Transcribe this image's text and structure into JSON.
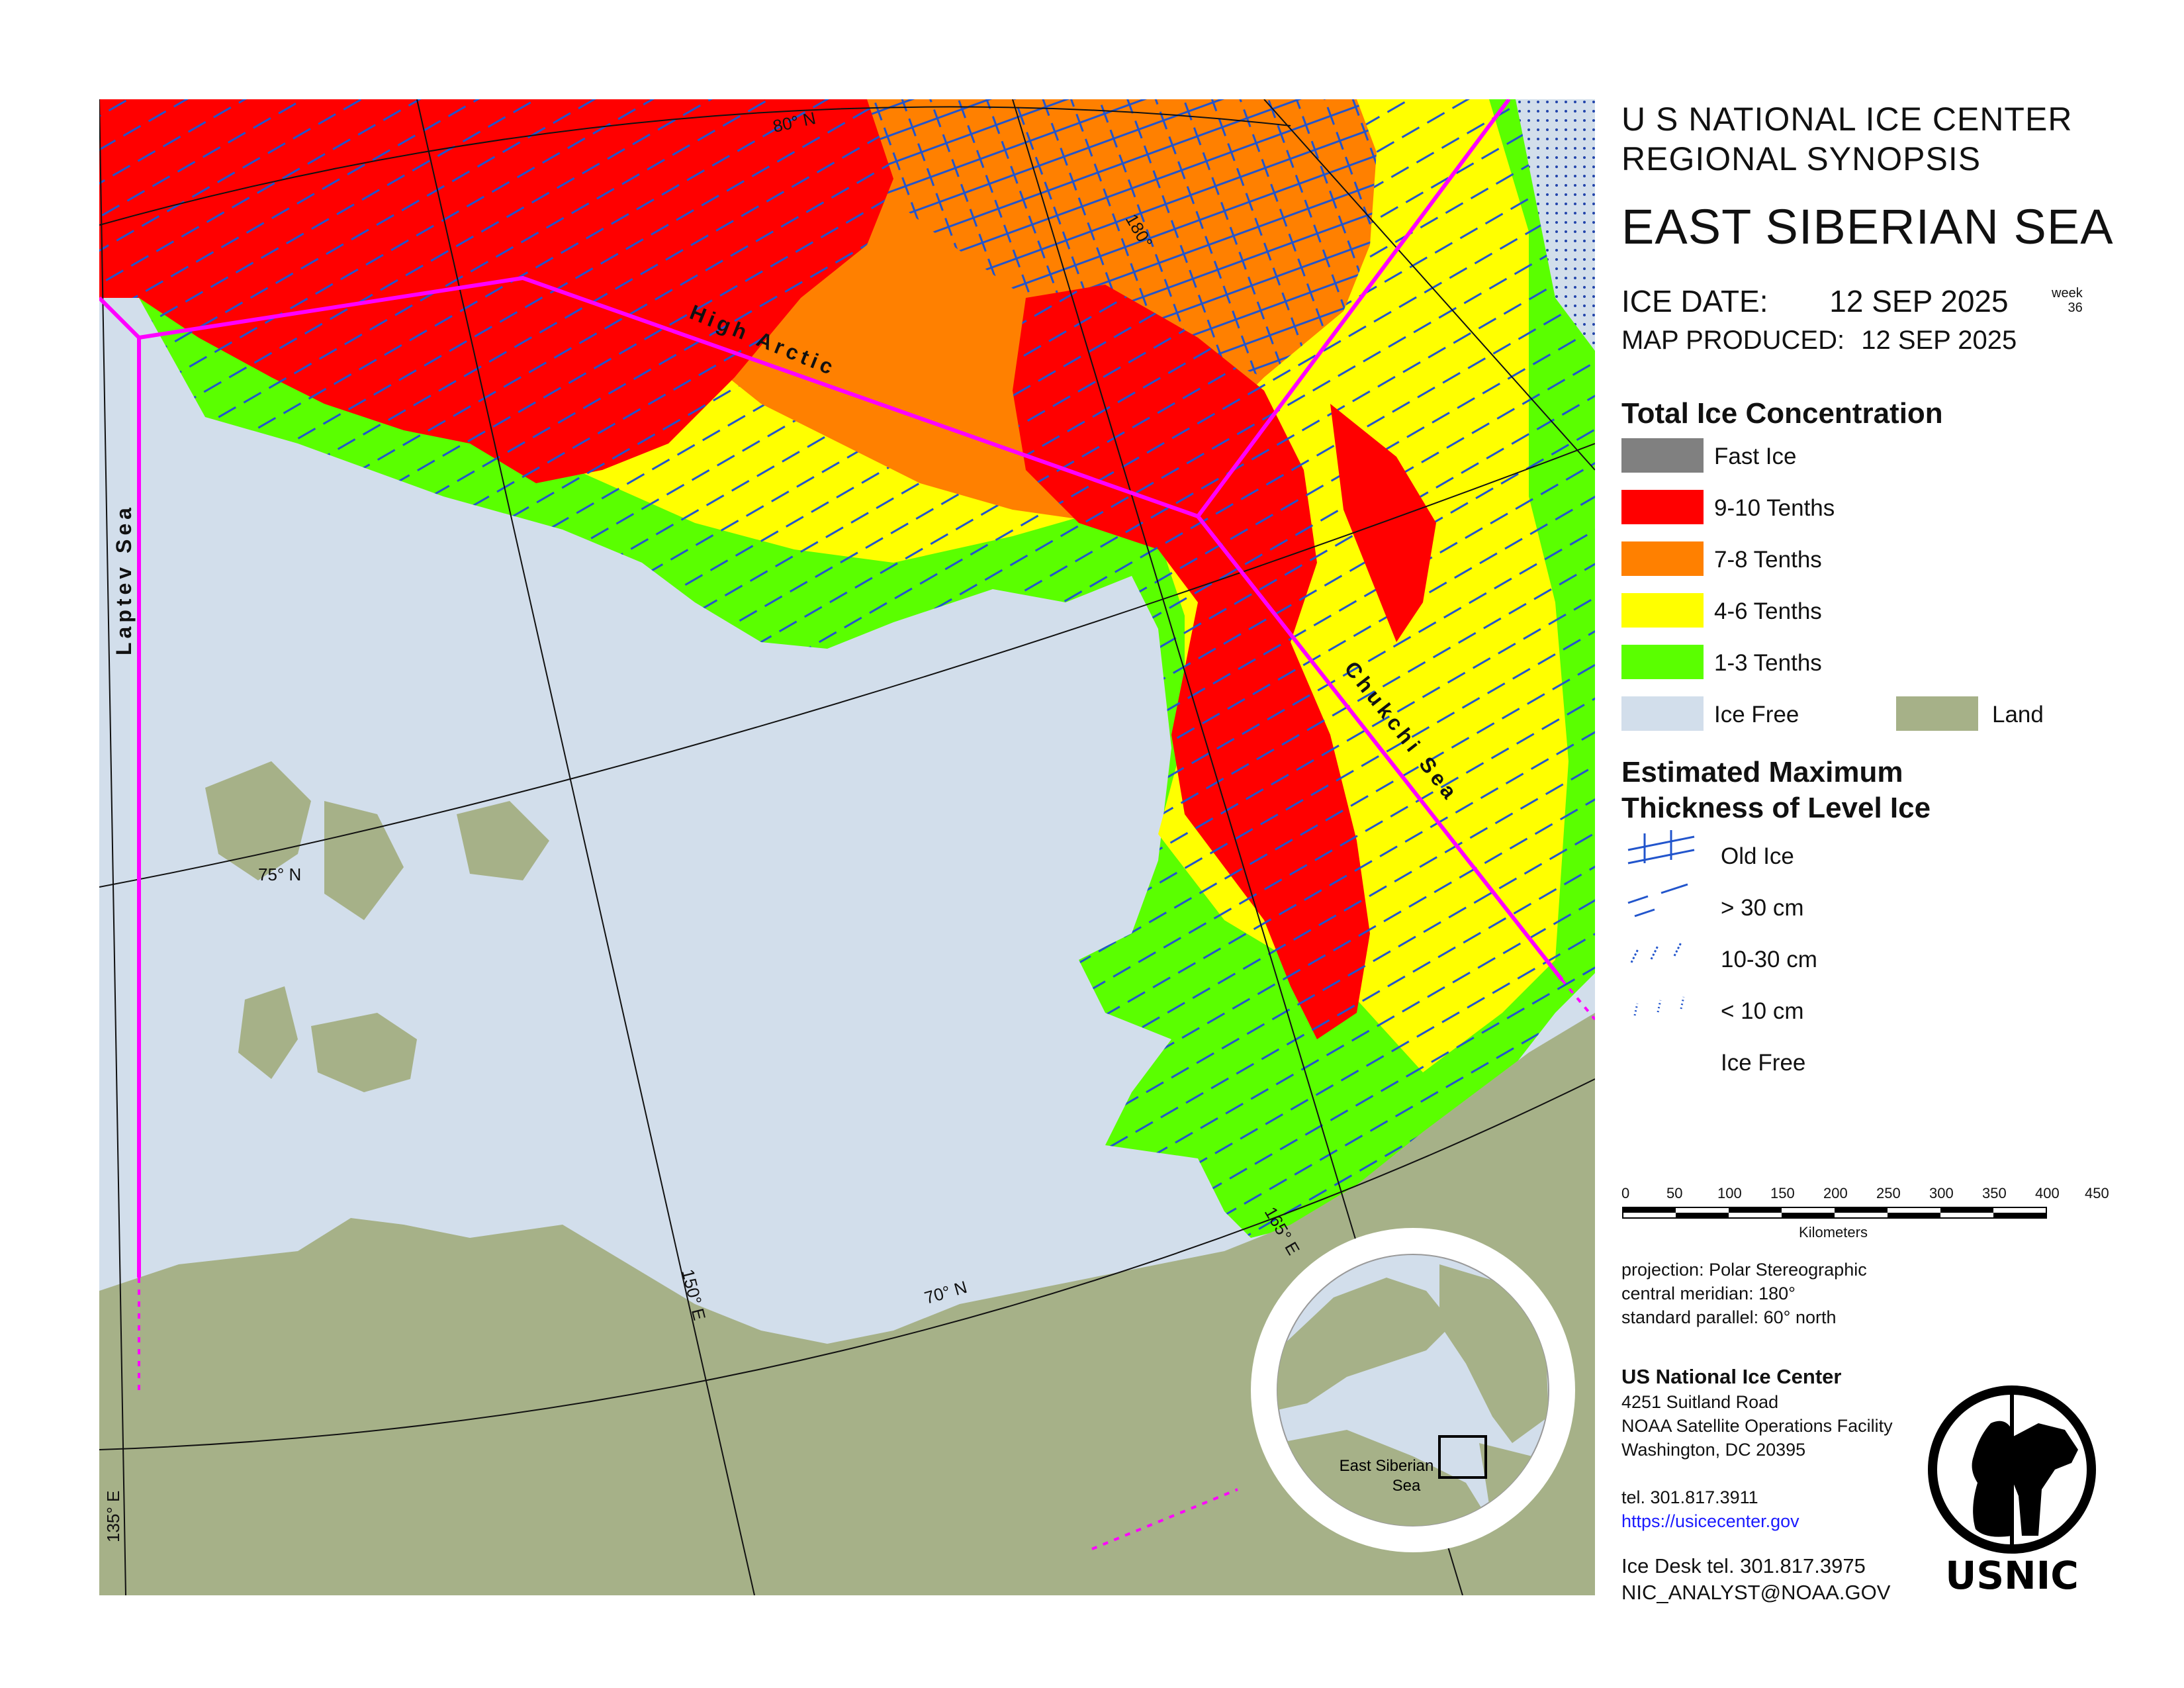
{
  "header": {
    "line1": "U S NATIONAL ICE CENTER",
    "line2": "REGIONAL SYNOPSIS",
    "region": "EAST SIBERIAN SEA",
    "ice_date_label": "ICE DATE:",
    "ice_date": "12 SEP 2025",
    "week_label": "week",
    "week_number": "36",
    "produced_label": "MAP PRODUCED:",
    "produced_date": "12 SEP 2025"
  },
  "legend_concentration": {
    "title": "Total Ice Concentration",
    "items": [
      {
        "label": "Fast Ice",
        "color": "#808080"
      },
      {
        "label": "9-10 Tenths",
        "color": "#ff0000"
      },
      {
        "label": "7-8 Tenths",
        "color": "#ff8000"
      },
      {
        "label": "4-6 Tenths",
        "color": "#ffff00"
      },
      {
        "label": "1-3 Tenths",
        "color": "#5aff00"
      },
      {
        "label": "Ice Free",
        "color": "#d2deeb"
      }
    ],
    "land": {
      "label": "Land",
      "color": "#a6b188"
    }
  },
  "legend_thickness": {
    "title_line1": "Estimated Maximum",
    "title_line2": "Thickness of Level Ice",
    "items": [
      "Old Ice",
      "> 30 cm",
      "10-30 cm",
      "< 10 cm",
      "Ice Free"
    ]
  },
  "scale_bar": {
    "ticks": [
      "0",
      "50",
      "100",
      "150",
      "200",
      "250",
      "300",
      "350",
      "400",
      "450"
    ],
    "unit": "Kilometers"
  },
  "projection": {
    "line1": "projection: Polar Stereographic",
    "line2": "central meridian: 180°",
    "line3": "standard parallel:  60° north"
  },
  "contact": {
    "org": "US National Ice Center",
    "addr1": "4251 Suitland Road",
    "addr2": "NOAA Satellite Operations Facility",
    "addr3": "Washington, DC  20395",
    "tel": "tel. 301.817.3911",
    "url": "https://usicecenter.gov",
    "desk_tel": "Ice Desk tel. 301.817.3975",
    "email": "NIC_ANALYST@NOAA.GOV",
    "logo_text": "USNIC"
  },
  "map_labels": {
    "high_arctic": "High Arctic",
    "chukchi": "Chukchi Sea",
    "laptev": "Laptev Sea",
    "lat80": "80° N",
    "lat75": "75° N",
    "lat70": "70° N",
    "lon180": "180°",
    "lon165": "165° E",
    "lon150": "150° E",
    "lon135": "135° E",
    "inset_label1": "East Siberian",
    "inset_label2": "Sea"
  },
  "colors": {
    "ice_free": "#d2deeb",
    "land": "#a6b188",
    "red": "#ff0000",
    "orange": "#ff8000",
    "yellow": "#ffff00",
    "green": "#5aff00",
    "boundary": "#ff00ff"
  }
}
